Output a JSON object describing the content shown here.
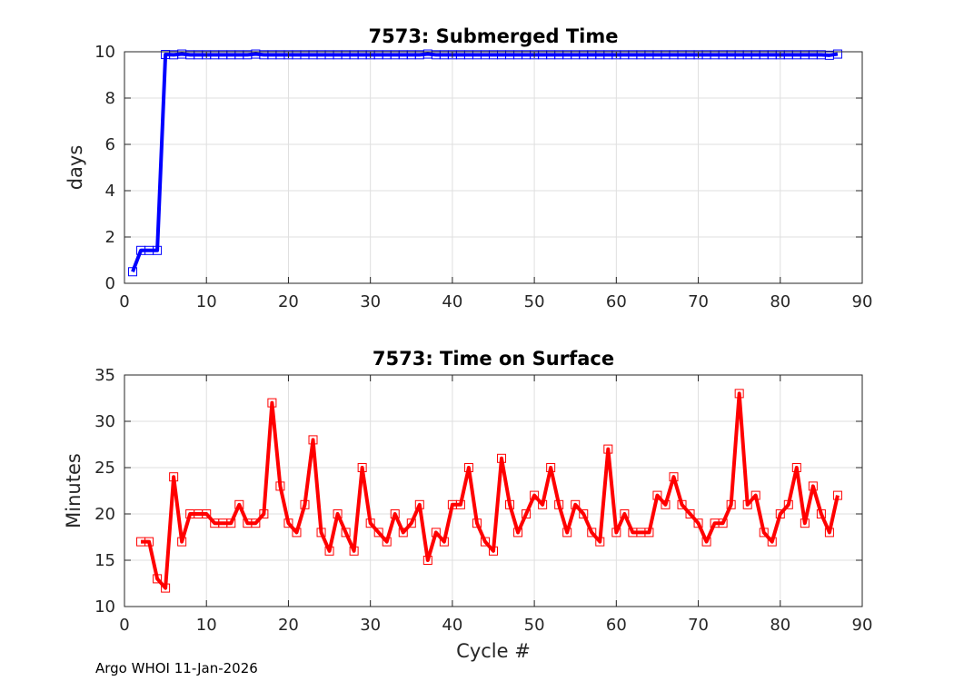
{
  "chart_data": [
    {
      "type": "line",
      "title": "7573: Submerged Time",
      "xlabel": "",
      "ylabel": "days",
      "xlim": [
        0,
        90
      ],
      "ylim": [
        0,
        10
      ],
      "xticks": [
        "0",
        "10",
        "20",
        "30",
        "40",
        "50",
        "60",
        "70",
        "80",
        "90"
      ],
      "yticks": [
        "0",
        "2",
        "4",
        "6",
        "8",
        "10"
      ],
      "grid": true,
      "line_color": "#0000ff",
      "marker": "square",
      "series": [
        {
          "name": "Submerged Time",
          "x": [
            1,
            2,
            3,
            4,
            5,
            6,
            7,
            8,
            9,
            10,
            11,
            12,
            13,
            14,
            15,
            16,
            17,
            18,
            19,
            20,
            21,
            22,
            23,
            24,
            25,
            26,
            27,
            28,
            29,
            30,
            31,
            32,
            33,
            34,
            35,
            36,
            37,
            38,
            39,
            40,
            41,
            42,
            43,
            44,
            45,
            46,
            47,
            48,
            49,
            50,
            51,
            52,
            53,
            54,
            55,
            56,
            57,
            58,
            59,
            60,
            61,
            62,
            63,
            64,
            65,
            66,
            67,
            68,
            69,
            70,
            71,
            72,
            73,
            74,
            75,
            76,
            77,
            78,
            79,
            80,
            81,
            82,
            83,
            84,
            85,
            86,
            87
          ],
          "values": [
            0.5,
            1.42,
            1.42,
            1.42,
            9.88,
            9.87,
            9.9,
            9.87,
            9.87,
            9.87,
            9.87,
            9.87,
            9.87,
            9.87,
            9.87,
            9.9,
            9.87,
            9.87,
            9.87,
            9.87,
            9.87,
            9.87,
            9.87,
            9.87,
            9.87,
            9.87,
            9.87,
            9.87,
            9.87,
            9.87,
            9.87,
            9.87,
            9.87,
            9.87,
            9.87,
            9.87,
            9.9,
            9.87,
            9.87,
            9.87,
            9.87,
            9.87,
            9.87,
            9.87,
            9.87,
            9.87,
            9.87,
            9.87,
            9.87,
            9.87,
            9.87,
            9.87,
            9.87,
            9.87,
            9.87,
            9.87,
            9.87,
            9.87,
            9.87,
            9.87,
            9.87,
            9.87,
            9.87,
            9.87,
            9.87,
            9.87,
            9.87,
            9.87,
            9.87,
            9.87,
            9.87,
            9.87,
            9.87,
            9.87,
            9.87,
            9.87,
            9.87,
            9.87,
            9.87,
            9.87,
            9.87,
            9.87,
            9.87,
            9.87,
            9.87,
            9.85,
            9.9
          ]
        }
      ]
    },
    {
      "type": "line",
      "title": "7573: Time on Surface",
      "xlabel": "Cycle #",
      "ylabel": "Minutes",
      "xlim": [
        0,
        90
      ],
      "ylim": [
        10,
        35
      ],
      "xticks": [
        "0",
        "10",
        "20",
        "30",
        "40",
        "50",
        "60",
        "70",
        "80",
        "90"
      ],
      "yticks": [
        "10",
        "15",
        "20",
        "25",
        "30",
        "35"
      ],
      "grid": true,
      "line_color": "#ff0000",
      "marker": "square",
      "series": [
        {
          "name": "Time on Surface",
          "x": [
            2,
            3,
            4,
            5,
            6,
            7,
            8,
            9,
            10,
            11,
            12,
            13,
            14,
            15,
            16,
            17,
            18,
            19,
            20,
            21,
            22,
            23,
            24,
            25,
            26,
            27,
            28,
            29,
            30,
            31,
            32,
            33,
            34,
            35,
            36,
            37,
            38,
            39,
            40,
            41,
            42,
            43,
            44,
            45,
            46,
            47,
            48,
            49,
            50,
            51,
            52,
            53,
            54,
            55,
            56,
            57,
            58,
            59,
            60,
            61,
            62,
            63,
            64,
            65,
            66,
            67,
            68,
            69,
            70,
            71,
            72,
            73,
            74,
            75,
            76,
            77,
            78,
            79,
            80,
            81,
            82,
            83,
            84,
            85,
            86,
            87
          ],
          "values": [
            17,
            17,
            13,
            12,
            24,
            17,
            20,
            20,
            20,
            19,
            19,
            19,
            21,
            19,
            19,
            20,
            32,
            23,
            19,
            18,
            21,
            28,
            18,
            16,
            20,
            18,
            16,
            25,
            19,
            18,
            17,
            20,
            18,
            19,
            21,
            15,
            18,
            17,
            21,
            21,
            25,
            19,
            17,
            16,
            26,
            21,
            18,
            20,
            22,
            21,
            25,
            21,
            18,
            21,
            20,
            18,
            17,
            27,
            18,
            20,
            18,
            18,
            18,
            22,
            21,
            24,
            21,
            20,
            19,
            17,
            19,
            19,
            21,
            33,
            21,
            22,
            18,
            17,
            20,
            21,
            25,
            19,
            23,
            20,
            18,
            22
          ]
        }
      ]
    }
  ],
  "footer": {
    "credit": "Argo WHOI 11-Jan-2026"
  }
}
